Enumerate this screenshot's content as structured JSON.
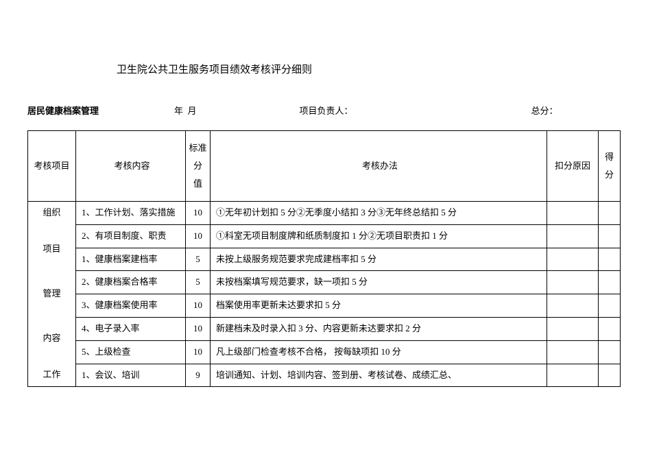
{
  "document": {
    "title": "卫生院公共卫生服务项目绩效考核评分细则",
    "section_label": "居民健康档案管理",
    "date_label": "年  月",
    "manager_label": "项目负责人：",
    "total_label": "总分："
  },
  "table": {
    "headers": {
      "project": "考核项目",
      "content": "考核内容",
      "standard_score": "标准分值",
      "method": "考核办法",
      "reason": "扣分原因",
      "final_score": "得分"
    },
    "rows": [
      {
        "project": "组织",
        "content": "1、工作计划、落实措施",
        "score": "10",
        "method": "①无年初计划扣 5 分②无季度小结扣 3 分③无年终总结扣 5 分",
        "reason": "",
        "final": ""
      },
      {
        "project": "",
        "content": "2、有项目制度、职责",
        "score": "10",
        "method": "①科室无项目制度牌和纸质制度扣 1 分②无项目职责扣 1 分",
        "reason": "",
        "final": ""
      },
      {
        "content": "1、健康档案建档率",
        "score": "5",
        "method": "未按上级服务规范要求完成建档率扣 5 分",
        "reason": "",
        "final": ""
      },
      {
        "content": "2、健康档案合格率",
        "score": "5",
        "method": "未按档案填写规范要求，缺一项扣 5 分",
        "reason": "",
        "final": ""
      },
      {
        "content": "3、健康档案使用率",
        "score": "10",
        "method": "档案使用率更新未达要求扣 5 分",
        "reason": "",
        "final": ""
      },
      {
        "content": "4、电子录入率",
        "score": "10",
        "method": "新建档未及时录入扣 3 分、内容更新未达要求扣 2 分",
        "reason": "",
        "final": ""
      },
      {
        "content": "5、上级检查",
        "score": "10",
        "method": "凡上级部门检查考核不合格， 按每缺项扣 10 分",
        "reason": "",
        "final": ""
      },
      {
        "project": "工作",
        "content": "1、会议、培训",
        "score": "9",
        "method": "培训通知、计划、培训内容、签到册、考核试卷、成绩汇总、",
        "reason": "",
        "final": ""
      }
    ],
    "side_label": "项目管理内容"
  },
  "style": {
    "background": "#ffffff",
    "text_color": "#000000",
    "border_color": "#000000",
    "base_fontsize": 13
  }
}
